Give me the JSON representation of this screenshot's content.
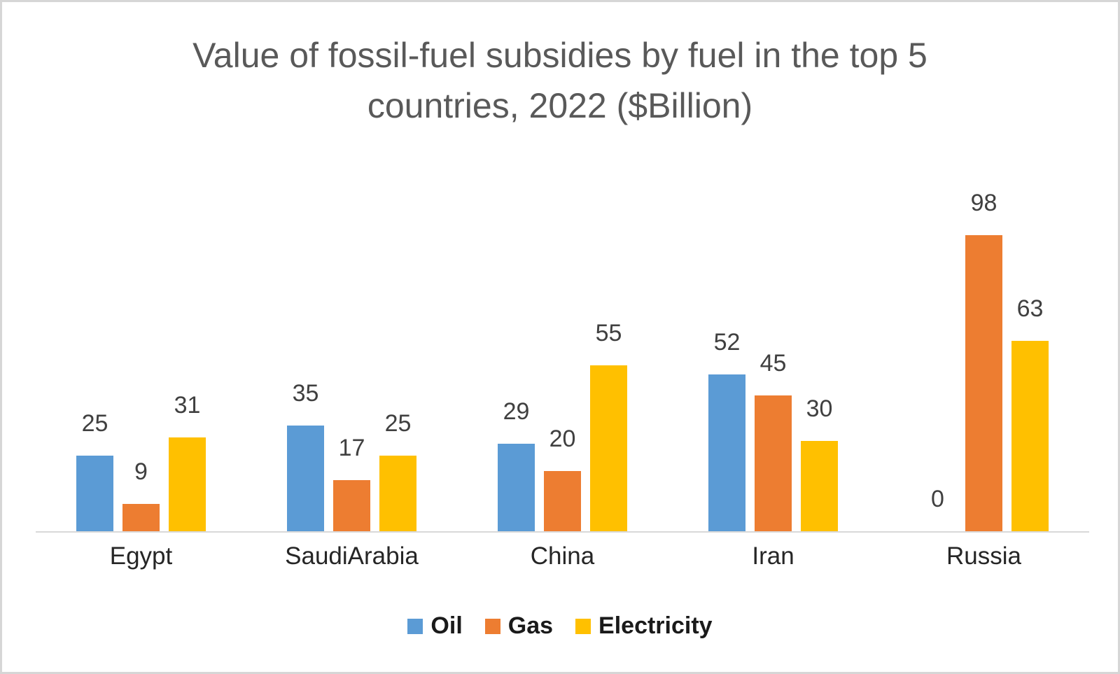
{
  "title": {
    "line1": "Value of fossil-fuel subsidies by fuel in the top 5",
    "line2": "countries, 2022 ($Billion)",
    "color": "#595959"
  },
  "chart_data": {
    "type": "bar",
    "title": "Value of fossil-fuel subsidies by fuel in the top 5 countries, 2022 ($Billion)",
    "categories": [
      "Egypt",
      "SaudiArabia",
      "China",
      "Iran",
      "Russia"
    ],
    "series": [
      {
        "name": "Oil",
        "color": "#5B9BD5",
        "values": [
          25,
          35,
          29,
          52,
          0
        ]
      },
      {
        "name": "Gas",
        "color": "#ED7D31",
        "values": [
          9,
          17,
          20,
          45,
          98
        ]
      },
      {
        "name": "Electricity",
        "color": "#FFC000",
        "values": [
          31,
          25,
          55,
          30,
          63
        ]
      }
    ],
    "data_labels": true,
    "data_label_color": "#404040",
    "category_label_color": "#262626",
    "value_axis": {
      "min": 0,
      "max": 98,
      "visible": false
    },
    "gridlines": false,
    "axis_line_color": "#d9d9d9",
    "legend_position": "bottom",
    "background": "#ffffff",
    "frame_border_color": "#d6d6d6"
  }
}
